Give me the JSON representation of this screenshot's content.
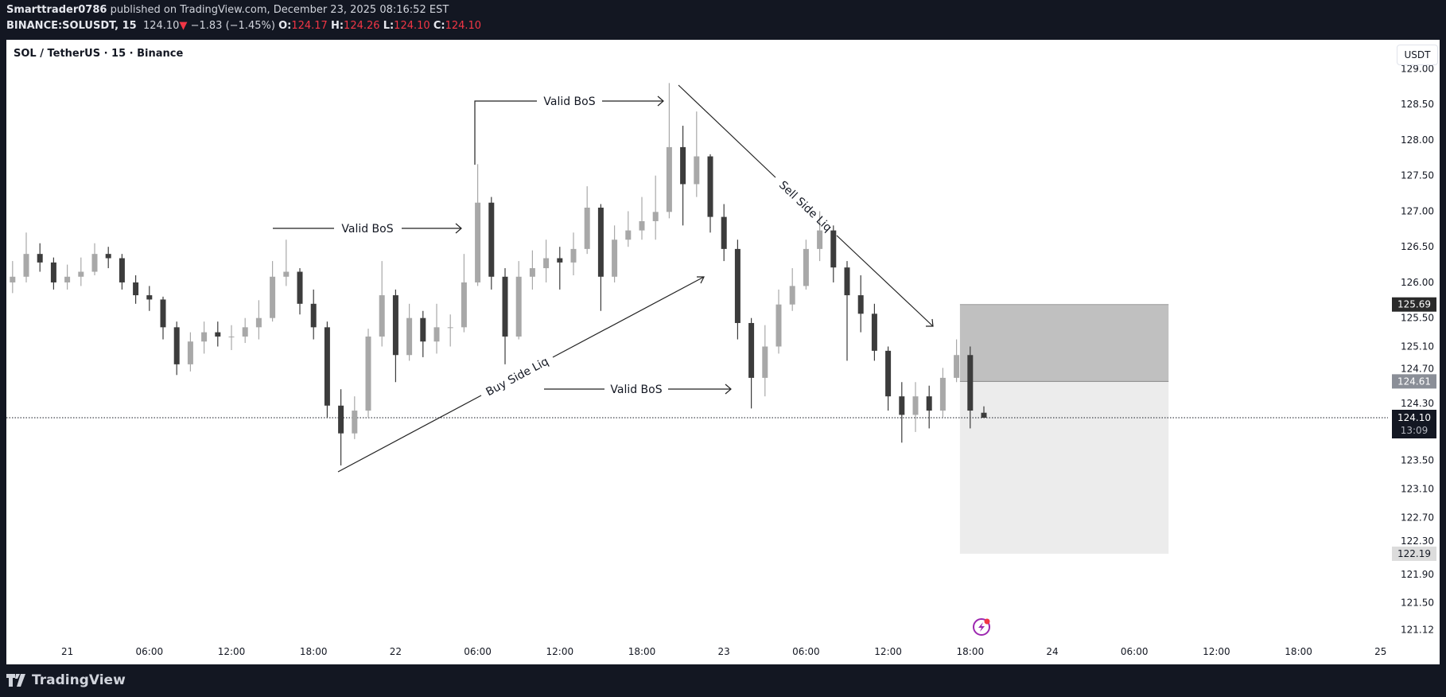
{
  "header": {
    "author": "Smarttrader0786",
    "published": "published on TradingView.com, December 23, 2025 08:16:52 EST",
    "symbol": "BINANCE:SOLUSDT, 15",
    "last": "124.10",
    "change": "−1.83 (−1.45%)",
    "o_label": "O:",
    "o": "124.17",
    "h_label": "H:",
    "h": "124.26",
    "l_label": "L:",
    "l": "124.10",
    "c_label": "C:",
    "c": "124.10",
    "down_color": "#f23645"
  },
  "chart_title": "SOL / TetherUS · 15 · Binance",
  "currency_button": "USDT",
  "footer": {
    "brand": "TradingView"
  },
  "chart_data": {
    "type": "candlestick",
    "colors": {
      "up": "#a8a8a8",
      "down": "#3c3c3c"
    },
    "ylim": [
      121.12,
      129.0
    ],
    "y_ticks": [
      "129.00",
      "128.50",
      "128.00",
      "127.50",
      "127.00",
      "126.50",
      "126.00",
      "125.50",
      "125.10",
      "124.70",
      "124.30",
      "123.50",
      "123.10",
      "122.70",
      "122.30",
      "121.90",
      "121.50",
      "121.12"
    ],
    "x_ticks": [
      {
        "label": "21",
        "t": "2025-12-21T00:00"
      },
      {
        "label": "06:00",
        "t": "2025-12-21T06:00"
      },
      {
        "label": "12:00",
        "t": "2025-12-21T12:00"
      },
      {
        "label": "18:00",
        "t": "2025-12-21T18:00"
      },
      {
        "label": "22",
        "t": "2025-12-22T00:00"
      },
      {
        "label": "06:00",
        "t": "2025-12-22T06:00"
      },
      {
        "label": "12:00",
        "t": "2025-12-22T12:00"
      },
      {
        "label": "18:00",
        "t": "2025-12-22T18:00"
      },
      {
        "label": "23",
        "t": "2025-12-23T00:00"
      },
      {
        "label": "06:00",
        "t": "2025-12-23T06:00"
      },
      {
        "label": "12:00",
        "t": "2025-12-23T12:00"
      },
      {
        "label": "18:00",
        "t": "2025-12-23T18:00"
      },
      {
        "label": "24",
        "t": "2025-12-24T00:00"
      },
      {
        "label": "06:00",
        "t": "2025-12-24T06:00"
      },
      {
        "label": "12:00",
        "t": "2025-12-24T12:00"
      },
      {
        "label": "18:00",
        "t": "2025-12-24T18:00"
      },
      {
        "label": "25",
        "t": "2025-12-25T00:00"
      }
    ],
    "candles": [
      [
        "2025-12-20T20:00",
        126.0,
        126.3,
        125.85,
        126.08
      ],
      [
        "2025-12-20T21:00",
        126.08,
        126.7,
        126.0,
        126.4
      ],
      [
        "2025-12-20T22:00",
        126.4,
        126.55,
        126.15,
        126.28
      ],
      [
        "2025-12-20T23:00",
        126.28,
        126.35,
        125.9,
        126.0
      ],
      [
        "2025-12-21T00:00",
        126.0,
        126.25,
        125.9,
        126.08
      ],
      [
        "2025-12-21T01:00",
        126.08,
        126.35,
        125.95,
        126.15
      ],
      [
        "2025-12-21T02:00",
        126.15,
        126.55,
        126.1,
        126.4
      ],
      [
        "2025-12-21T03:00",
        126.4,
        126.5,
        126.2,
        126.34
      ],
      [
        "2025-12-21T04:00",
        126.34,
        126.4,
        125.9,
        126.0
      ],
      [
        "2025-12-21T05:00",
        126.0,
        126.1,
        125.7,
        125.82
      ],
      [
        "2025-12-21T06:00",
        125.82,
        125.95,
        125.6,
        125.76
      ],
      [
        "2025-12-21T07:00",
        125.76,
        125.8,
        125.2,
        125.37
      ],
      [
        "2025-12-21T08:00",
        125.37,
        125.45,
        124.7,
        124.85
      ],
      [
        "2025-12-21T09:00",
        124.85,
        125.3,
        124.75,
        125.17
      ],
      [
        "2025-12-21T10:00",
        125.17,
        125.45,
        125.0,
        125.3
      ],
      [
        "2025-12-21T11:00",
        125.3,
        125.45,
        125.1,
        125.24
      ],
      [
        "2025-12-21T12:00",
        125.24,
        125.4,
        125.05,
        125.24
      ],
      [
        "2025-12-21T13:00",
        125.24,
        125.5,
        125.15,
        125.37
      ],
      [
        "2025-12-21T14:00",
        125.37,
        125.75,
        125.2,
        125.5
      ],
      [
        "2025-12-21T15:00",
        125.5,
        126.3,
        125.45,
        126.08
      ],
      [
        "2025-12-21T16:00",
        126.08,
        126.6,
        125.95,
        126.15
      ],
      [
        "2025-12-21T17:00",
        126.15,
        126.2,
        125.55,
        125.7
      ],
      [
        "2025-12-21T18:00",
        125.7,
        125.9,
        125.2,
        125.37
      ],
      [
        "2025-12-21T19:00",
        125.37,
        125.45,
        124.1,
        124.27
      ],
      [
        "2025-12-21T20:00",
        124.27,
        124.5,
        123.43,
        123.88
      ],
      [
        "2025-12-21T21:00",
        123.88,
        124.4,
        123.8,
        124.2
      ],
      [
        "2025-12-21T22:00",
        124.2,
        125.35,
        124.1,
        125.24
      ],
      [
        "2025-12-21T23:00",
        125.24,
        126.3,
        125.1,
        125.82
      ],
      [
        "2025-12-22T00:00",
        125.82,
        125.9,
        124.6,
        124.98
      ],
      [
        "2025-12-22T01:00",
        124.98,
        125.7,
        124.9,
        125.5
      ],
      [
        "2025-12-22T02:00",
        125.5,
        125.6,
        124.95,
        125.17
      ],
      [
        "2025-12-22T03:00",
        125.17,
        125.7,
        125.0,
        125.37
      ],
      [
        "2025-12-22T04:00",
        125.37,
        125.55,
        125.1,
        125.37
      ],
      [
        "2025-12-22T05:00",
        125.37,
        126.4,
        125.3,
        126.0
      ],
      [
        "2025-12-22T06:00",
        126.0,
        127.66,
        125.95,
        127.12
      ],
      [
        "2025-12-22T07:00",
        127.12,
        127.2,
        125.9,
        126.08
      ],
      [
        "2025-12-22T08:00",
        126.08,
        126.2,
        124.85,
        125.24
      ],
      [
        "2025-12-22T09:00",
        125.24,
        126.3,
        125.2,
        126.08
      ],
      [
        "2025-12-22T10:00",
        126.08,
        126.45,
        125.9,
        126.2
      ],
      [
        "2025-12-22T11:00",
        126.2,
        126.6,
        126.0,
        126.34
      ],
      [
        "2025-12-22T12:00",
        126.34,
        126.5,
        125.9,
        126.28
      ],
      [
        "2025-12-22T13:00",
        126.28,
        126.7,
        126.1,
        126.47
      ],
      [
        "2025-12-22T14:00",
        126.47,
        127.35,
        126.4,
        127.05
      ],
      [
        "2025-12-22T15:00",
        127.05,
        127.1,
        125.6,
        126.08
      ],
      [
        "2025-12-22T16:00",
        126.08,
        126.8,
        126.0,
        126.6
      ],
      [
        "2025-12-22T17:00",
        126.6,
        127.0,
        126.5,
        126.73
      ],
      [
        "2025-12-22T18:00",
        126.73,
        127.2,
        126.6,
        126.86
      ],
      [
        "2025-12-22T19:00",
        126.86,
        127.5,
        126.6,
        126.99
      ],
      [
        "2025-12-22T20:00",
        126.99,
        128.8,
        126.9,
        127.9
      ],
      [
        "2025-12-22T21:00",
        127.9,
        128.2,
        126.8,
        127.38
      ],
      [
        "2025-12-22T22:00",
        127.38,
        128.4,
        127.2,
        127.77
      ],
      [
        "2025-12-22T23:00",
        127.77,
        127.8,
        126.7,
        126.92
      ],
      [
        "2025-12-23T00:00",
        126.92,
        127.1,
        126.3,
        126.47
      ],
      [
        "2025-12-23T01:00",
        126.47,
        126.6,
        125.2,
        125.43
      ],
      [
        "2025-12-23T02:00",
        125.43,
        125.5,
        124.23,
        124.66
      ],
      [
        "2025-12-23T03:00",
        124.66,
        125.4,
        124.4,
        125.1
      ],
      [
        "2025-12-23T04:00",
        125.1,
        125.9,
        125.0,
        125.69
      ],
      [
        "2025-12-23T05:00",
        125.69,
        126.2,
        125.6,
        125.95
      ],
      [
        "2025-12-23T06:00",
        125.95,
        126.6,
        125.9,
        126.47
      ],
      [
        "2025-12-23T07:00",
        126.47,
        127.0,
        126.3,
        126.73
      ],
      [
        "2025-12-23T08:00",
        126.73,
        126.8,
        126.0,
        126.21
      ],
      [
        "2025-12-23T09:00",
        126.21,
        126.3,
        124.9,
        125.82
      ],
      [
        "2025-12-23T10:00",
        125.82,
        126.1,
        125.3,
        125.56
      ],
      [
        "2025-12-23T11:00",
        125.56,
        125.7,
        124.9,
        125.04
      ],
      [
        "2025-12-23T12:00",
        125.04,
        125.1,
        124.2,
        124.4
      ],
      [
        "2025-12-23T13:00",
        124.4,
        124.6,
        123.75,
        124.14
      ],
      [
        "2025-12-23T14:00",
        124.14,
        124.6,
        123.9,
        124.4
      ],
      [
        "2025-12-23T15:00",
        124.4,
        124.55,
        123.95,
        124.2
      ],
      [
        "2025-12-23T16:00",
        124.2,
        124.8,
        124.1,
        124.66
      ],
      [
        "2025-12-23T17:00",
        124.66,
        125.2,
        124.6,
        124.98
      ],
      [
        "2025-12-23T18:00",
        124.98,
        125.1,
        123.95,
        124.2
      ],
      [
        "2025-12-23T19:00",
        124.17,
        124.26,
        124.1,
        124.1
      ]
    ],
    "current_price": {
      "price": "124.10",
      "countdown": "13:09",
      "value": 124.1
    },
    "position_box": {
      "start": "2025-12-23T17:15",
      "end": "2025-12-24T08:30",
      "stop": 125.69,
      "entry": 124.61,
      "target": 122.19,
      "stop_label": "125.69",
      "entry_label": "124.61",
      "target_label": "122.19",
      "stop_color": "#c0c0c0",
      "target_color": "#ececec"
    },
    "annotations": [
      {
        "text": "Valid BoS",
        "kind": "arrow"
      },
      {
        "text": "Valid BoS",
        "kind": "arrow"
      },
      {
        "text": "Valid BoS",
        "kind": "arrow"
      },
      {
        "text": "Buy Side Liq",
        "kind": "trend-arrow"
      },
      {
        "text": "Sell Side Liq",
        "kind": "trend-arrow"
      }
    ]
  }
}
